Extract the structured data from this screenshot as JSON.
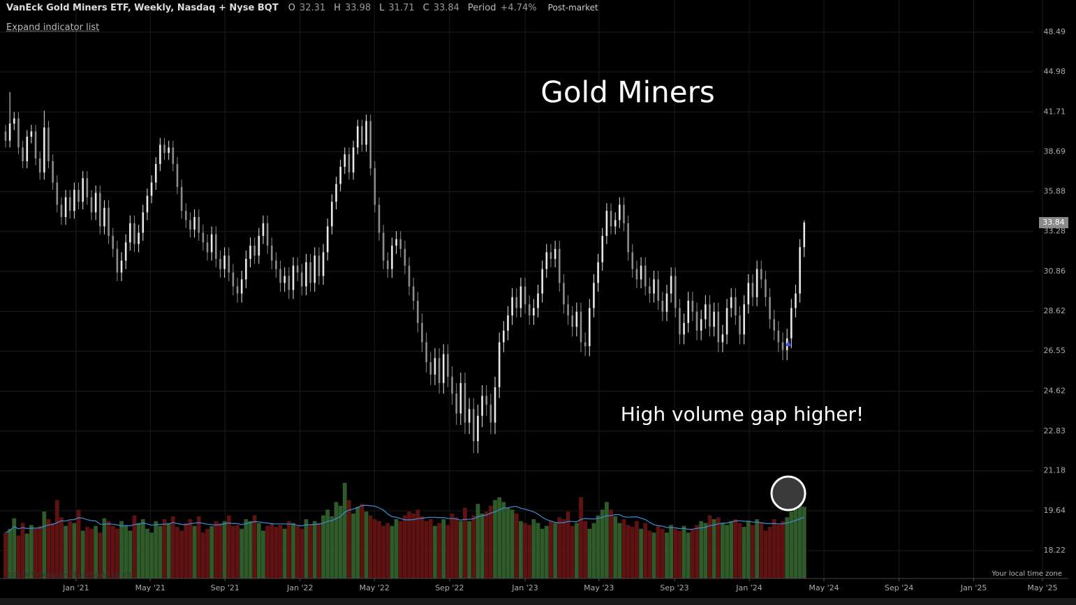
{
  "header": {
    "title": "VanEck Gold Miners ETF, Weekly, Nasdaq + Nyse BQT",
    "ohlc_labels": [
      "O",
      "H",
      "L",
      "C"
    ],
    "period_label": "Period",
    "period_change": "+4.74%",
    "session": "Post-market",
    "expand": "Expand indicator list",
    "copyright": "©2024 TrendSpider. Market data via ICE.",
    "timezone": "Your local time zone"
  },
  "chart_data": {
    "type": "candlestick",
    "title": "Gold Miners",
    "annotation": "High volume gap higher!",
    "log_y": true,
    "grid": true,
    "up_color": "#e8e8e8",
    "down_color": "#8c8c8c",
    "volume_up_color": "#2f5a2a",
    "volume_down_color": "#5e1212",
    "volume_ma_color": "#3d8fd6",
    "ylim": [
      18.22,
      48.49
    ],
    "yticks": [
      48.49,
      44.98,
      41.71,
      38.69,
      35.88,
      33.28,
      30.86,
      28.62,
      26.55,
      24.62,
      22.83,
      21.18,
      19.64,
      18.22
    ],
    "xlim": [
      -1.3,
      249.3
    ],
    "xticks": [
      {
        "value": 16.4,
        "label": "Jan '21"
      },
      {
        "value": 33.7,
        "label": "May '21"
      },
      {
        "value": 51.1,
        "label": "Sep '21"
      },
      {
        "value": 68.6,
        "label": "Jan '22"
      },
      {
        "value": 85.9,
        "label": "May '22"
      },
      {
        "value": 103.4,
        "label": "Sep '22"
      },
      {
        "value": 121.0,
        "label": "Jan '23"
      },
      {
        "value": 138.2,
        "label": "May '23"
      },
      {
        "value": 155.8,
        "label": "Sep '23"
      },
      {
        "value": 173.2,
        "label": "Jan '24"
      },
      {
        "value": 190.6,
        "label": "May '24"
      },
      {
        "value": 208.1,
        "label": "Sep '24"
      },
      {
        "value": 225.5,
        "label": "Jan '25"
      },
      {
        "value": 241.5,
        "label": "May '25"
      }
    ],
    "volume_lim": [
      0,
      100
    ],
    "open": [
      40.2,
      39.5,
      40.8,
      41.2,
      39.0,
      38.0,
      39.8,
      40.2,
      38.2,
      37.2,
      40.5,
      38.0,
      36.5,
      35.0,
      34.2,
      35.5,
      34.6,
      36.0,
      35.2,
      36.8,
      35.5,
      34.5,
      35.8,
      33.6,
      34.8,
      33.0,
      32.2,
      30.8,
      31.5,
      32.6,
      33.8,
      32.5,
      33.2,
      34.5,
      35.6,
      36.5,
      37.8,
      39.2,
      38.6,
      39.0,
      37.8,
      36.2,
      34.6,
      34.0,
      33.4,
      34.2,
      33.2,
      32.6,
      32.0,
      33.1,
      31.6,
      31.0,
      31.8,
      30.8,
      30.0,
      29.6,
      30.4,
      31.6,
      32.4,
      31.8,
      33.0,
      33.8,
      32.4,
      31.5,
      31.0,
      30.2,
      30.6,
      29.8,
      31.2,
      30.8,
      30.0,
      31.4,
      30.2,
      31.8,
      30.6,
      32.0,
      33.6,
      35.2,
      36.4,
      37.6,
      38.5,
      37.2,
      39.0,
      40.6,
      39.2,
      41.0,
      37.5,
      35.0,
      33.2,
      31.5,
      31.0,
      32.4,
      32.8,
      32.2,
      31.2,
      30.0,
      29.2,
      28.0,
      27.0,
      26.0,
      25.4,
      26.2,
      25.0,
      26.4,
      25.3,
      24.5,
      23.6,
      25.0,
      23.2,
      23.8,
      22.4,
      23.5,
      24.4,
      24.0,
      23.2,
      24.8,
      27.0,
      27.6,
      28.4,
      29.4,
      28.8,
      30.0,
      29.0,
      28.4,
      28.8,
      29.6,
      31.0,
      32.0,
      31.6,
      32.2,
      30.2,
      29.0,
      28.4,
      27.8,
      28.6,
      27.0,
      26.8,
      28.8,
      30.2,
      31.4,
      33.0,
      34.6,
      33.6,
      34.0,
      35.0,
      33.8,
      32.0,
      31.0,
      30.4,
      31.2,
      30.0,
      29.6,
      30.4,
      29.2,
      28.6,
      29.6,
      30.6,
      28.8,
      27.4,
      28.0,
      29.2,
      28.6,
      27.6,
      28.2,
      29.0,
      27.8,
      28.6,
      27.0,
      27.4,
      28.8,
      29.4,
      28.4,
      27.4,
      29.0,
      30.2,
      29.4,
      31.0,
      30.4,
      29.4,
      28.2,
      27.6,
      27.0,
      26.6,
      27.2,
      28.8,
      29.6,
      32.31
    ],
    "high": [
      40.7,
      43.3,
      41.7,
      41.7,
      39.5,
      40.3,
      40.7,
      40.7,
      38.7,
      41.8,
      41.0,
      38.5,
      37.0,
      35.5,
      36.0,
      36.0,
      36.5,
      36.5,
      37.3,
      37.3,
      36.0,
      36.3,
      36.3,
      35.3,
      35.3,
      33.5,
      32.7,
      32.0,
      33.1,
      34.3,
      34.3,
      33.7,
      35.0,
      36.1,
      37.0,
      38.3,
      39.7,
      39.7,
      39.5,
      39.5,
      38.3,
      36.7,
      35.1,
      34.5,
      34.7,
      34.7,
      33.7,
      33.1,
      33.6,
      33.6,
      32.1,
      32.3,
      32.3,
      31.3,
      30.5,
      30.9,
      32.1,
      32.9,
      32.9,
      33.5,
      34.3,
      34.3,
      32.9,
      32.0,
      31.5,
      31.1,
      31.1,
      31.7,
      31.7,
      31.3,
      31.9,
      31.9,
      32.3,
      32.3,
      32.5,
      34.1,
      35.7,
      36.9,
      38.1,
      39.0,
      39.0,
      39.5,
      41.1,
      41.1,
      41.5,
      41.5,
      38.0,
      35.5,
      33.7,
      32.0,
      32.9,
      33.3,
      33.3,
      32.7,
      31.7,
      30.5,
      29.7,
      28.5,
      27.5,
      26.5,
      26.7,
      26.7,
      26.9,
      26.9,
      25.8,
      25.0,
      25.5,
      25.5,
      24.3,
      24.3,
      24.0,
      24.9,
      24.9,
      24.5,
      25.3,
      27.5,
      28.1,
      28.9,
      29.9,
      29.9,
      30.5,
      30.5,
      29.5,
      29.3,
      30.1,
      31.5,
      32.5,
      32.5,
      32.7,
      32.7,
      30.7,
      29.5,
      28.9,
      29.1,
      29.1,
      27.5,
      29.3,
      30.7,
      31.9,
      33.5,
      35.1,
      35.1,
      34.5,
      35.5,
      35.5,
      34.3,
      32.5,
      31.5,
      31.7,
      31.7,
      30.5,
      30.9,
      30.9,
      29.7,
      30.1,
      31.1,
      31.1,
      29.3,
      28.5,
      29.7,
      29.7,
      29.1,
      28.7,
      29.5,
      29.5,
      29.1,
      29.1,
      27.9,
      29.3,
      29.9,
      29.9,
      28.9,
      29.5,
      30.7,
      30.7,
      31.5,
      31.5,
      30.9,
      29.9,
      28.7,
      28.1,
      27.5,
      27.7,
      29.3,
      30.1,
      32.8,
      33.98
    ],
    "low": [
      39.0,
      39.0,
      40.3,
      38.5,
      37.5,
      37.5,
      39.3,
      37.7,
      36.7,
      36.7,
      37.5,
      36.0,
      34.5,
      33.7,
      33.7,
      34.1,
      34.1,
      34.7,
      34.7,
      35.0,
      34.0,
      34.0,
      33.1,
      33.1,
      32.5,
      31.7,
      30.3,
      30.3,
      31.0,
      32.1,
      32.0,
      32.0,
      32.7,
      34.0,
      35.1,
      36.0,
      37.3,
      38.1,
      38.1,
      37.3,
      35.7,
      34.1,
      33.5,
      32.9,
      32.9,
      32.7,
      32.1,
      31.5,
      31.5,
      31.1,
      30.5,
      30.5,
      30.3,
      29.5,
      29.1,
      29.1,
      29.9,
      31.1,
      31.3,
      31.3,
      32.5,
      31.9,
      31.0,
      30.5,
      29.7,
      29.7,
      29.3,
      29.3,
      30.3,
      29.5,
      29.5,
      29.7,
      29.7,
      30.1,
      30.1,
      31.5,
      33.1,
      34.7,
      35.9,
      37.1,
      36.7,
      36.7,
      38.5,
      38.7,
      38.7,
      37.0,
      34.5,
      32.7,
      31.0,
      30.5,
      30.5,
      31.9,
      31.7,
      30.7,
      29.5,
      28.7,
      27.5,
      26.5,
      25.5,
      24.9,
      24.9,
      24.5,
      24.5,
      24.8,
      24.0,
      23.1,
      23.1,
      22.7,
      22.7,
      21.9,
      21.9,
      23.0,
      23.5,
      22.7,
      22.7,
      24.3,
      26.5,
      27.1,
      27.9,
      28.3,
      28.3,
      28.5,
      27.9,
      27.9,
      28.3,
      29.1,
      30.5,
      31.1,
      31.1,
      29.7,
      28.5,
      27.9,
      27.3,
      27.3,
      26.5,
      26.3,
      26.3,
      28.3,
      29.7,
      30.9,
      32.5,
      33.1,
      33.1,
      33.5,
      33.3,
      31.5,
      30.5,
      29.9,
      29.9,
      29.5,
      29.1,
      29.1,
      28.7,
      28.1,
      28.1,
      29.1,
      28.3,
      26.9,
      26.9,
      27.5,
      28.1,
      27.1,
      27.1,
      27.7,
      27.3,
      27.3,
      26.5,
      26.5,
      26.9,
      28.3,
      27.9,
      26.9,
      26.9,
      28.5,
      28.9,
      28.9,
      29.9,
      28.9,
      27.7,
      27.1,
      26.5,
      26.1,
      26.1,
      26.7,
      28.3,
      29.1,
      31.71
    ],
    "close": [
      39.5,
      40.8,
      41.2,
      39.0,
      38.0,
      39.8,
      40.2,
      38.2,
      37.2,
      40.5,
      38.0,
      36.5,
      35.0,
      34.2,
      35.5,
      34.6,
      36.0,
      35.2,
      36.8,
      35.5,
      34.5,
      35.8,
      33.6,
      34.8,
      33.0,
      32.2,
      30.8,
      31.5,
      32.6,
      33.8,
      32.5,
      33.2,
      34.5,
      35.6,
      36.5,
      37.8,
      39.2,
      38.6,
      39.0,
      37.8,
      36.2,
      34.6,
      34.0,
      33.4,
      34.2,
      33.2,
      32.6,
      32.0,
      33.1,
      31.6,
      31.0,
      31.8,
      30.8,
      30.0,
      29.6,
      30.4,
      31.6,
      32.4,
      31.8,
      33.0,
      33.8,
      32.4,
      31.5,
      31.0,
      30.2,
      30.6,
      29.8,
      31.2,
      30.8,
      30.0,
      31.4,
      30.2,
      31.8,
      30.6,
      32.0,
      33.6,
      35.2,
      36.4,
      37.6,
      38.5,
      37.2,
      39.0,
      40.6,
      39.2,
      41.0,
      37.5,
      35.0,
      33.2,
      31.5,
      31.0,
      32.4,
      32.8,
      32.2,
      31.2,
      30.0,
      29.2,
      28.0,
      27.0,
      26.0,
      25.4,
      26.2,
      25.0,
      26.4,
      25.3,
      24.5,
      23.6,
      25.0,
      23.2,
      23.8,
      22.4,
      23.5,
      24.4,
      24.0,
      23.2,
      24.8,
      27.0,
      27.6,
      28.4,
      29.4,
      28.8,
      30.0,
      29.0,
      28.4,
      28.8,
      29.6,
      31.0,
      32.0,
      31.6,
      32.2,
      30.2,
      29.0,
      28.4,
      27.8,
      28.6,
      27.0,
      26.8,
      28.8,
      30.2,
      31.4,
      33.0,
      34.6,
      33.6,
      34.0,
      35.0,
      33.8,
      32.0,
      31.0,
      30.4,
      31.2,
      30.0,
      29.6,
      30.4,
      29.2,
      28.6,
      29.6,
      30.6,
      28.8,
      27.4,
      28.0,
      29.2,
      28.6,
      27.6,
      28.2,
      29.0,
      27.8,
      28.6,
      27.0,
      27.4,
      28.8,
      29.4,
      28.4,
      27.4,
      29.0,
      30.2,
      29.4,
      31.0,
      30.4,
      29.4,
      28.2,
      27.6,
      27.0,
      26.6,
      27.2,
      28.8,
      29.6,
      32.31,
      33.84
    ],
    "volume": [
      48,
      52,
      63,
      45,
      58,
      47,
      56,
      52,
      55,
      70,
      62,
      58,
      82,
      64,
      55,
      60,
      58,
      72,
      50,
      54,
      52,
      55,
      48,
      63,
      60,
      55,
      52,
      60,
      55,
      50,
      66,
      58,
      62,
      52,
      48,
      60,
      55,
      62,
      58,
      65,
      54,
      50,
      58,
      62,
      55,
      65,
      48,
      52,
      55,
      60,
      58,
      60,
      66,
      55,
      56,
      52,
      62,
      60,
      66,
      58,
      50,
      55,
      58,
      54,
      56,
      52,
      60,
      58,
      55,
      52,
      62,
      56,
      60,
      58,
      66,
      72,
      65,
      80,
      76,
      100,
      82,
      68,
      75,
      78,
      70,
      66,
      62,
      60,
      55,
      58,
      55,
      62,
      60,
      66,
      70,
      68,
      72,
      65,
      60,
      62,
      55,
      58,
      62,
      56,
      68,
      64,
      60,
      74,
      60,
      66,
      78,
      68,
      70,
      76,
      82,
      85,
      80,
      74,
      72,
      68,
      60,
      58,
      56,
      62,
      58,
      52,
      55,
      60,
      58,
      64,
      62,
      70,
      55,
      58,
      85,
      60,
      52,
      58,
      66,
      72,
      80,
      72,
      65,
      58,
      62,
      56,
      54,
      60,
      52,
      58,
      50,
      48,
      55,
      52,
      48,
      56,
      52,
      50,
      55,
      48,
      52,
      56,
      60,
      58,
      66,
      62,
      64,
      58,
      56,
      60,
      62,
      58,
      54,
      60,
      56,
      62,
      58,
      50,
      54,
      62,
      56,
      60,
      64,
      70,
      72,
      78,
      75
    ]
  }
}
